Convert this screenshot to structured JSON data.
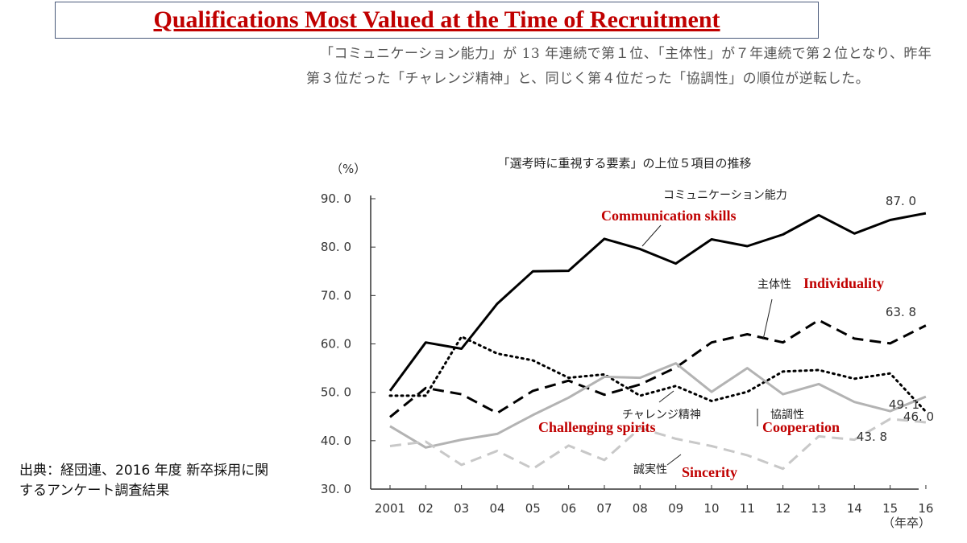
{
  "header": {
    "title": "Qualifications Most Valued at the Time of Recruitment",
    "paragraph": "「コミュニケーション能力」が 13 年連続で第１位、「主体性」が７年連続で第２位となり、昨年第３位だった「チャレンジ精神」と、同じく第４位だった「協調性」の順位が逆転した。"
  },
  "source_note": "出典：経団連、2016 年度 新卒採用に関するアンケート調査結果",
  "chart_data": {
    "type": "line",
    "title": "「選考時に重視する要素」の上位５項目の推移",
    "ylabel": "（%）",
    "xlabel": "（年卒）",
    "ylim": [
      30,
      90
    ],
    "yticks": [
      "90. 0",
      "80. 0",
      "70. 0",
      "60. 0",
      "50. 0",
      "40. 0",
      "30. 0"
    ],
    "categories": [
      "2001",
      "02",
      "03",
      "04",
      "05",
      "06",
      "07",
      "08",
      "09",
      "10",
      "11",
      "12",
      "13",
      "14",
      "15",
      "16"
    ],
    "series": [
      {
        "name": "コミュニケーション能力",
        "name_en": "Communication skills",
        "style": "solid-black",
        "color": "#000000",
        "end_label": "87. 0",
        "values": [
          50.3,
          60.3,
          59.0,
          68.3,
          75.0,
          75.1,
          81.7,
          79.6,
          76.6,
          81.6,
          80.2,
          82.6,
          86.6,
          82.8,
          85.6,
          87.0
        ]
      },
      {
        "name": "主体性",
        "name_en": "Individuality",
        "style": "dashed-black",
        "color": "#000000",
        "end_label": "63. 8",
        "values": [
          44.9,
          50.9,
          49.6,
          45.7,
          50.3,
          52.4,
          49.5,
          51.6,
          55.1,
          60.3,
          62.0,
          60.3,
          64.9,
          61.1,
          60.1,
          63.8
        ]
      },
      {
        "name": "チャレンジ精神",
        "name_en": "Challenging spirits",
        "style": "dotted-black",
        "color": "#000000",
        "end_label": "46. 0",
        "values": [
          49.3,
          49.3,
          61.5,
          58.0,
          56.6,
          53.0,
          53.7,
          49.3,
          51.3,
          48.2,
          50.1,
          54.3,
          54.6,
          52.8,
          53.9,
          46.0
        ]
      },
      {
        "name": "協調性",
        "name_en": "Cooperation",
        "style": "solid-gray",
        "color": "#b3b3b3",
        "end_label": "49. 1",
        "values": [
          43.0,
          38.6,
          40.2,
          41.4,
          45.3,
          48.9,
          53.2,
          53.0,
          56.0,
          50.1,
          55.0,
          49.6,
          51.7,
          48.0,
          46.1,
          49.1
        ]
      },
      {
        "name": "誠実性",
        "name_en": "Sincerity",
        "style": "dashed-gray",
        "color": "#c8c8c8",
        "end_label": "43. 8",
        "values": [
          38.9,
          39.8,
          35.0,
          37.9,
          34.2,
          39.0,
          36.0,
          42.6,
          40.4,
          38.9,
          37.0,
          34.2,
          40.9,
          40.2,
          44.5,
          43.8
        ]
      }
    ],
    "colors": {
      "english_labels": "#c00000",
      "title": "#c00000"
    }
  }
}
